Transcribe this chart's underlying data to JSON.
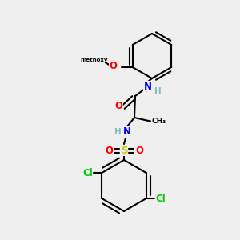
{
  "bg_color": "#efefef",
  "bond_color": "#000000",
  "bond_lw": 1.5,
  "atom_colors": {
    "C": "#000000",
    "H": "#7fbfbf",
    "N": "#0000ff",
    "O": "#ff0000",
    "S": "#cccc00",
    "Cl": "#00cc00"
  },
  "font_size": 8.5,
  "font_size_small": 7.5
}
